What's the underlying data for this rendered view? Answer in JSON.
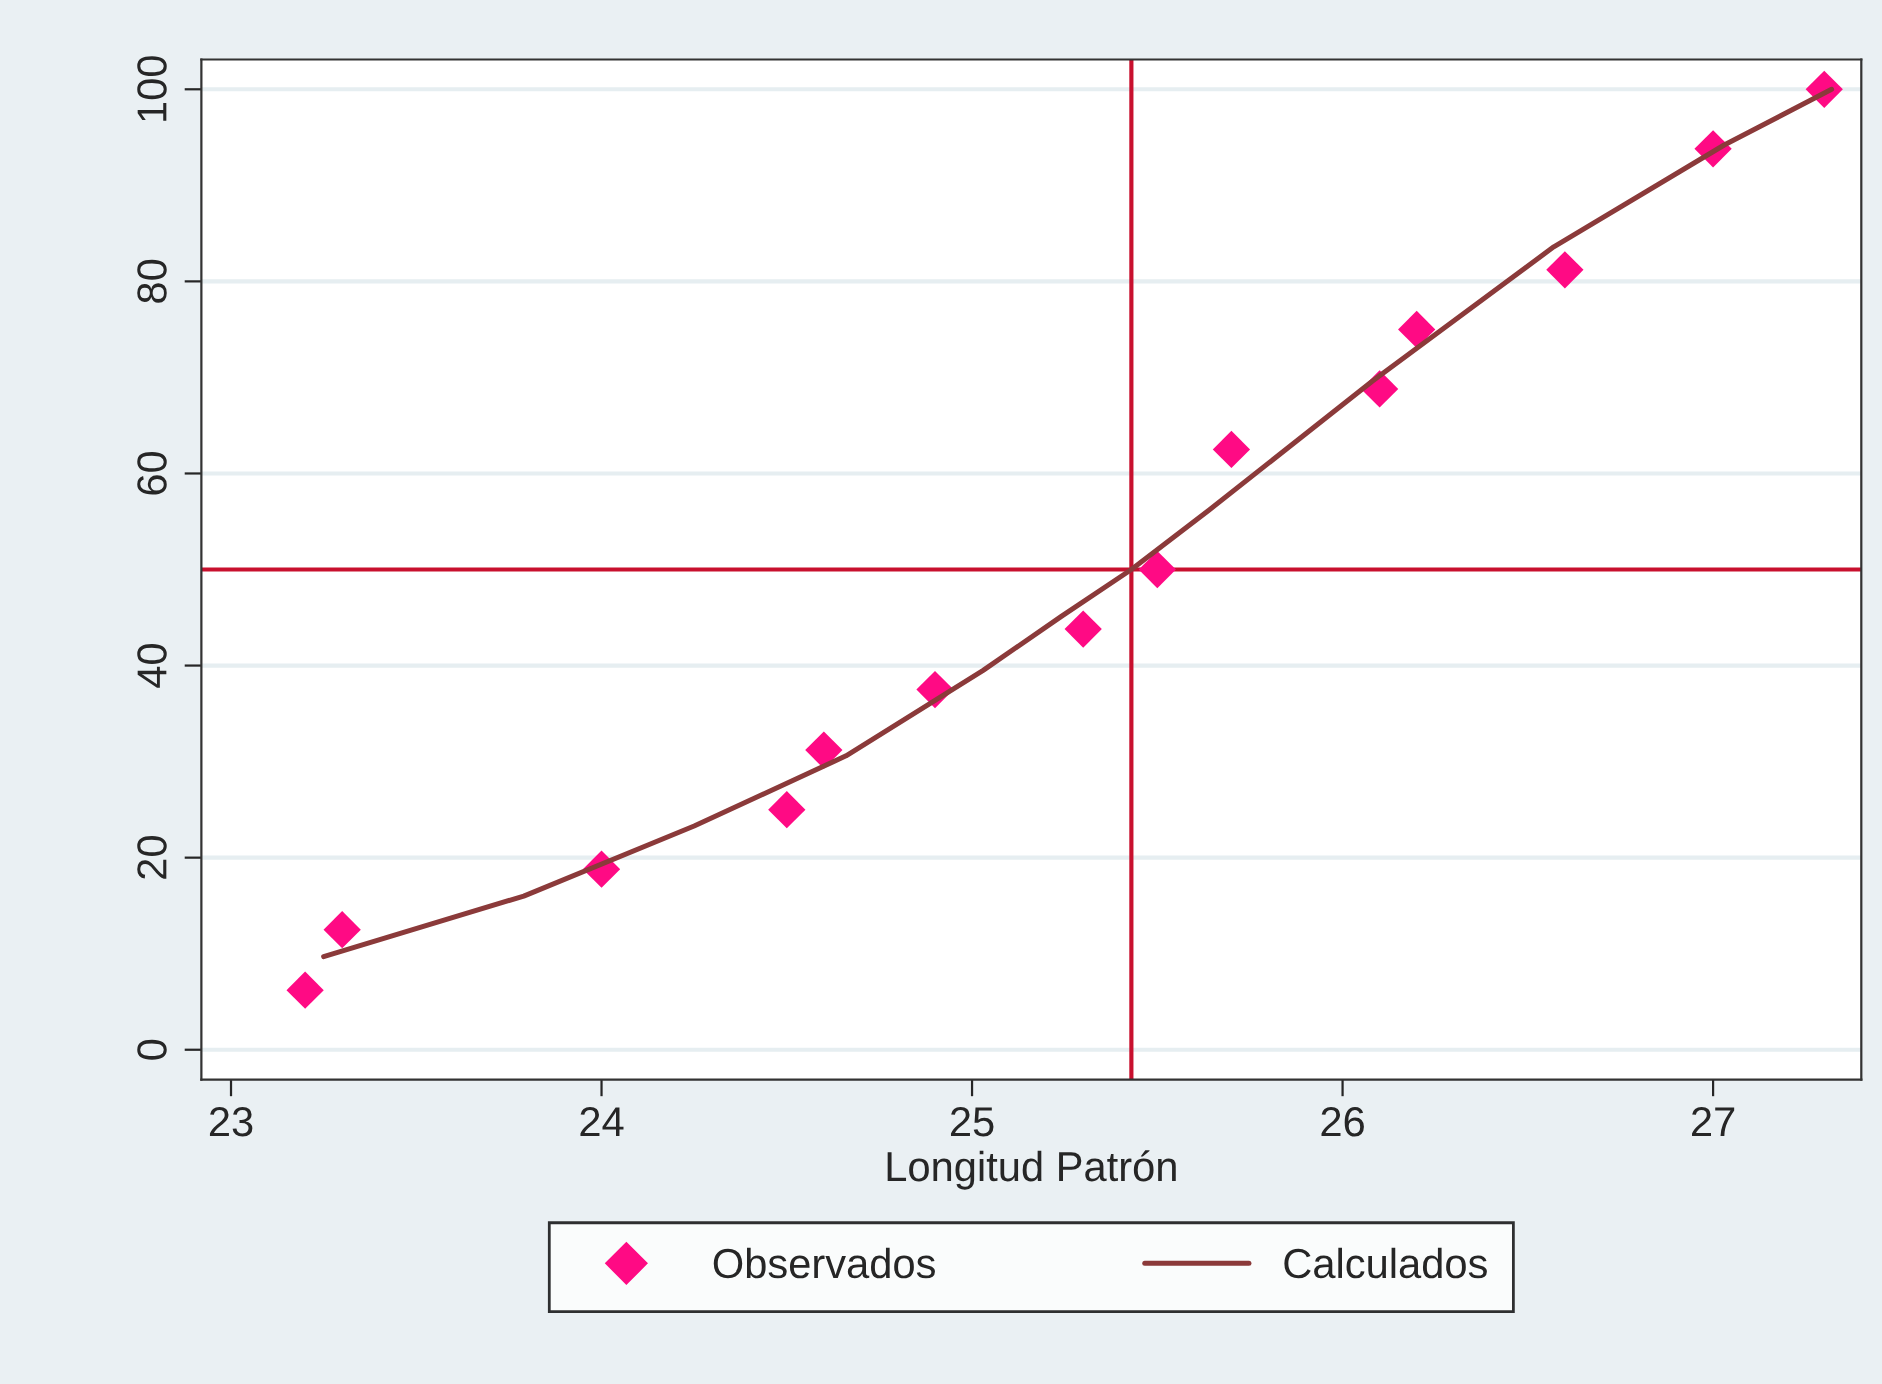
{
  "chart_data": {
    "type": "scatter",
    "xlabel": "Longitud Patrón",
    "xlim": [
      22.92,
      27.4
    ],
    "xticks": [
      23,
      24,
      25,
      26,
      27
    ],
    "ylim": [
      -3.1,
      103.1
    ],
    "yticks": [
      0,
      20,
      40,
      60,
      80,
      100
    ],
    "grid": "y",
    "legend": "bottom",
    "series": [
      {
        "name": "Observados",
        "marker": "diamond",
        "color": "#ff0a84",
        "x": [
          23.2,
          23.3,
          24.0,
          24.5,
          24.6,
          24.9,
          25.3,
          25.5,
          25.7,
          26.1,
          26.2,
          26.6,
          27.0,
          27.3
        ],
        "values": [
          6.2,
          12.5,
          18.8,
          25,
          31.2,
          37.5,
          43.8,
          50,
          62.5,
          68.8,
          75,
          81.2,
          93.8,
          100
        ]
      },
      {
        "name": "Calculados",
        "type": "line",
        "color": "#8b3a3a",
        "x": [
          23.25,
          23.79,
          24.25,
          24.66,
          25.03,
          25.24,
          25.43,
          25.64,
          26.08,
          26.57,
          27.03,
          27.32
        ],
        "values": [
          9.7,
          16.0,
          23.3,
          30.6,
          39.5,
          45.1,
          50,
          56.2,
          69.6,
          83.6,
          94.2,
          100
        ]
      }
    ],
    "ref_lines": [
      {
        "axis": "x",
        "value": 25.43,
        "color": "#c8102e"
      },
      {
        "axis": "y",
        "value": 50,
        "color": "#c8102e"
      }
    ]
  }
}
